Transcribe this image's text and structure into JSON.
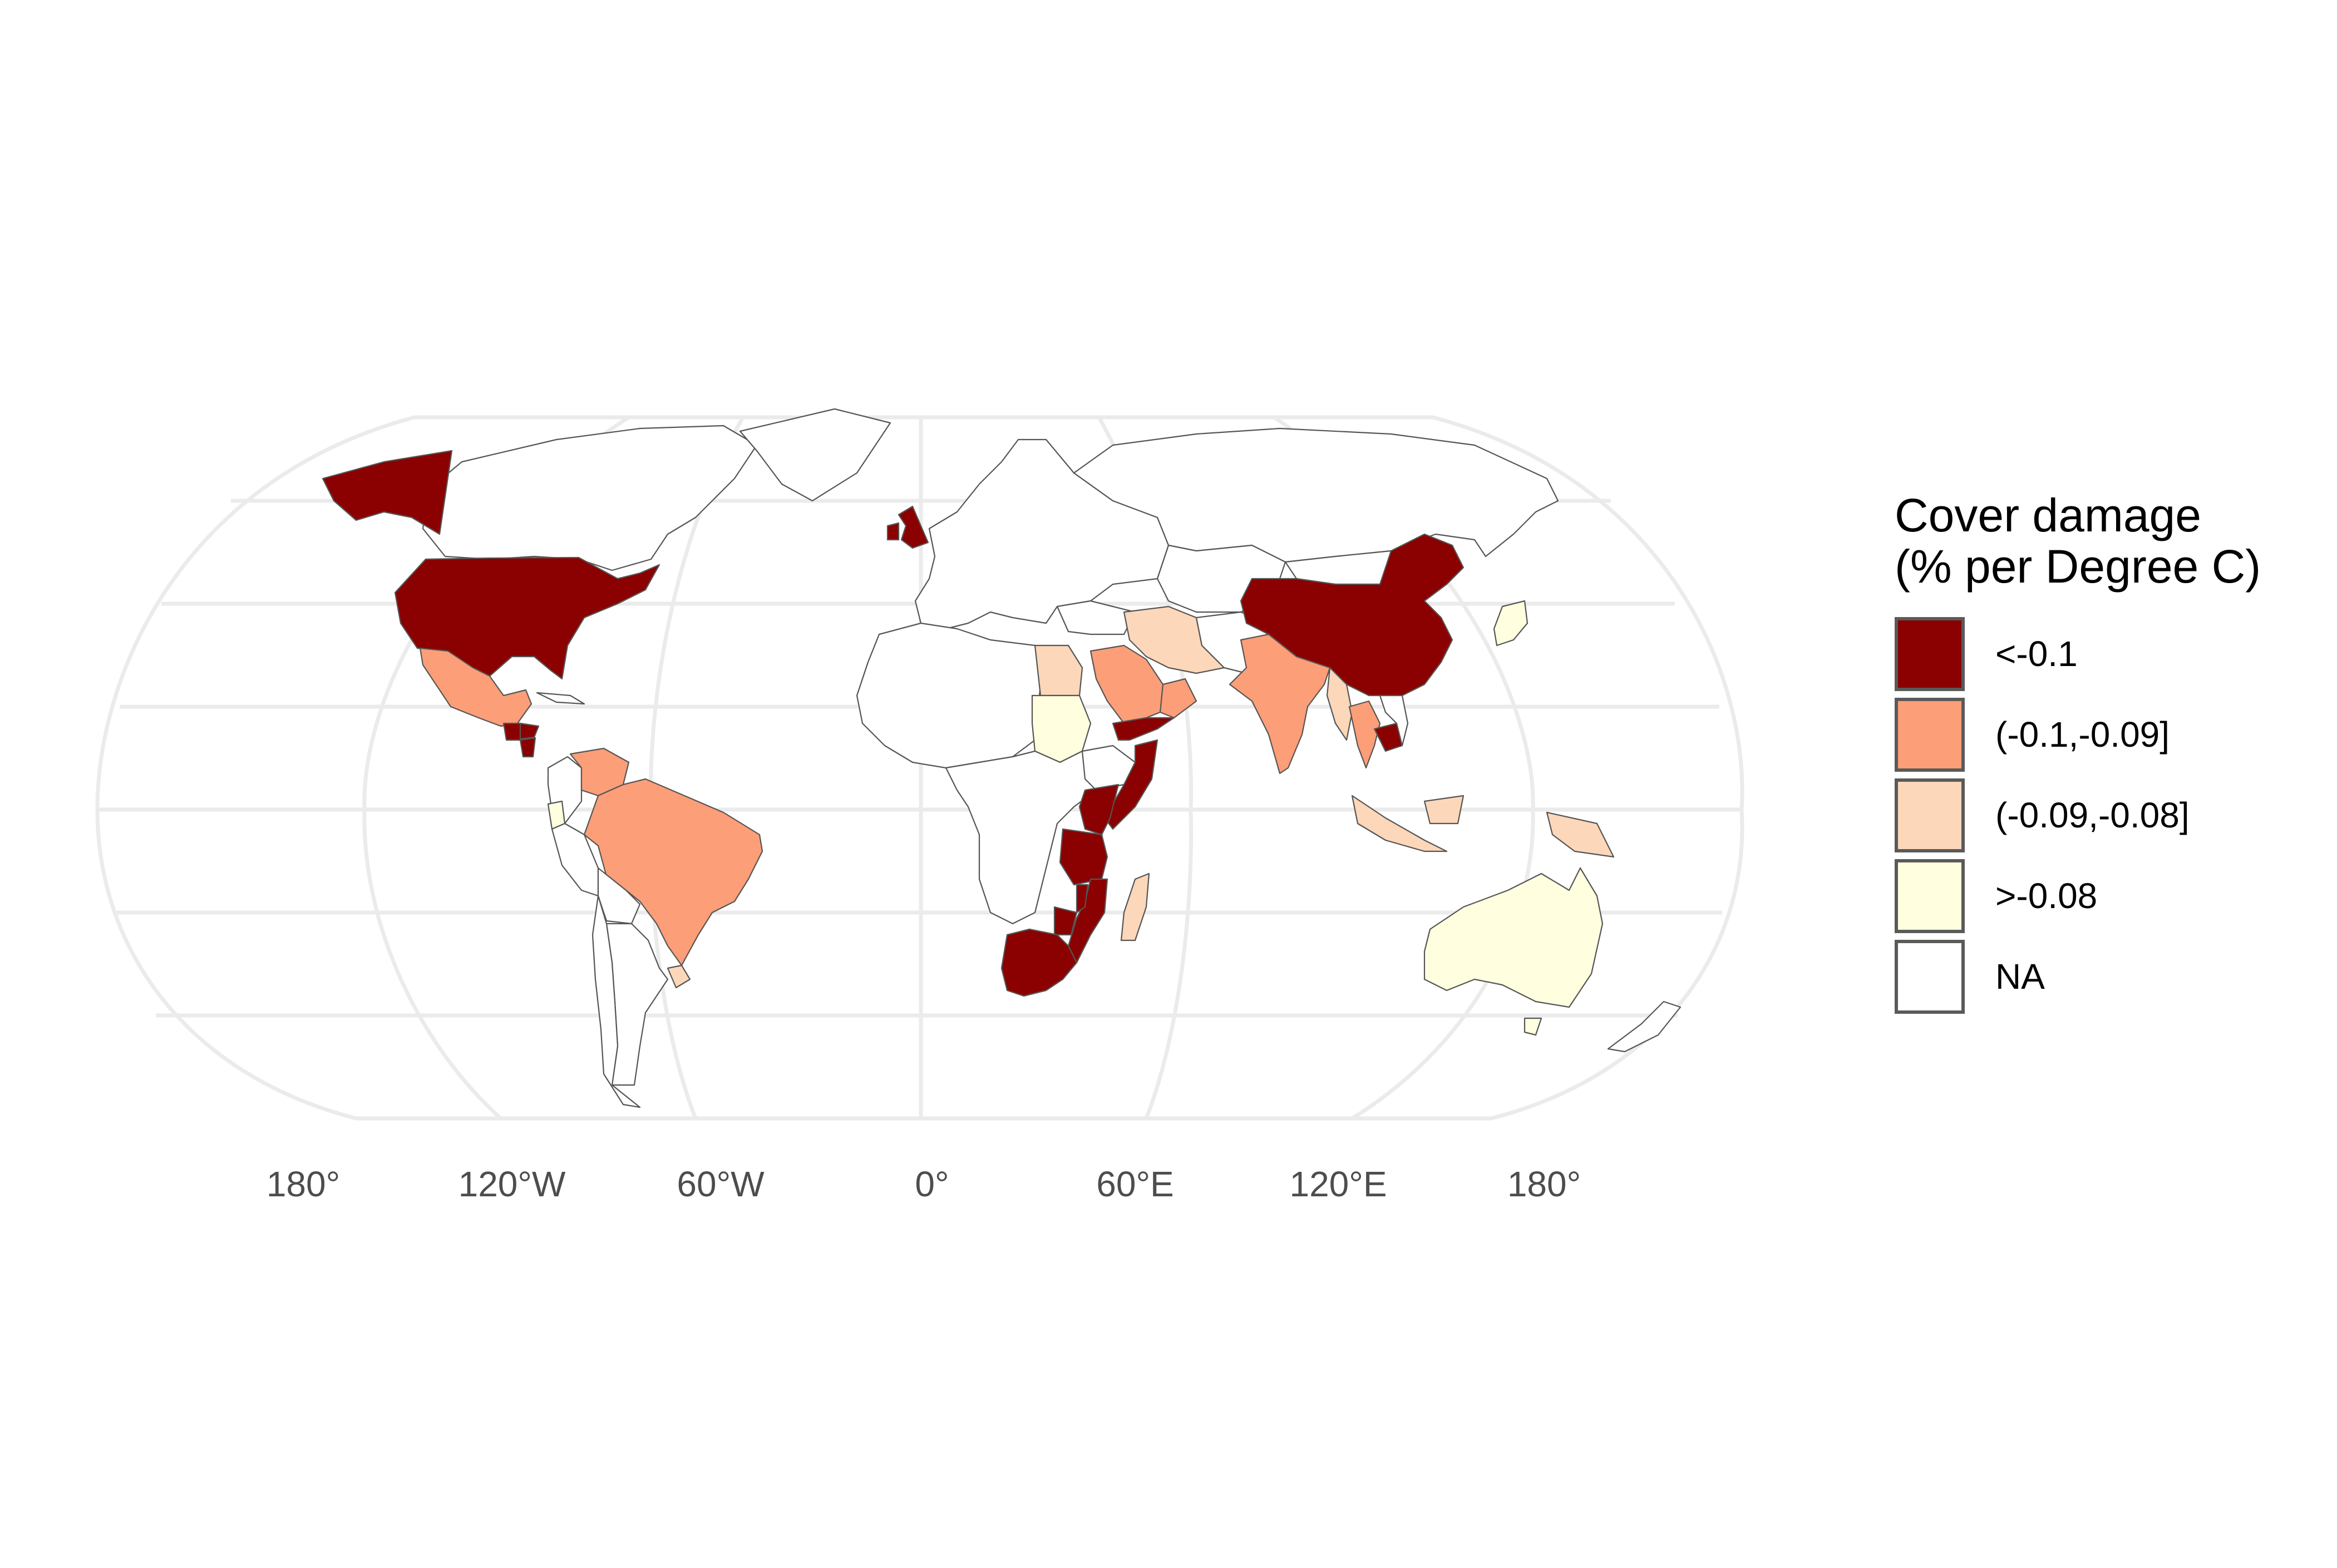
{
  "legend": {
    "title_line1": "Cover damage",
    "title_line2": "(% per Degree C)",
    "items": [
      {
        "label": "<-0.1",
        "color": "#8b0000"
      },
      {
        "label": "(-0.1,-0.09]",
        "color": "#fc9e78"
      },
      {
        "label": "(-0.09,-0.08]",
        "color": "#fdd7b9"
      },
      {
        "label": ">-0.08",
        "color": "#ffffdf"
      },
      {
        "label": "NA",
        "color": "#ffffff"
      }
    ]
  },
  "axis": {
    "longitude_labels": [
      "180°",
      "120°W",
      "60°W",
      "0°",
      "60°E",
      "120°E",
      "180°"
    ]
  },
  "countries": [
    {
      "name": "United States",
      "class": "<-0.1"
    },
    {
      "name": "Alaska",
      "class": "<-0.1"
    },
    {
      "name": "United Kingdom",
      "class": "<-0.1"
    },
    {
      "name": "China",
      "class": "<-0.1"
    },
    {
      "name": "Guatemala",
      "class": "<-0.1"
    },
    {
      "name": "Honduras",
      "class": "<-0.1"
    },
    {
      "name": "Nicaragua",
      "class": "<-0.1"
    },
    {
      "name": "Yemen",
      "class": "<-0.1"
    },
    {
      "name": "Somalia",
      "class": "<-0.1"
    },
    {
      "name": "Kenya",
      "class": "<-0.1"
    },
    {
      "name": "Tanzania",
      "class": "<-0.1"
    },
    {
      "name": "Mozambique",
      "class": "<-0.1"
    },
    {
      "name": "Malawi",
      "class": "<-0.1"
    },
    {
      "name": "Zimbabwe",
      "class": "<-0.1"
    },
    {
      "name": "South Africa",
      "class": "<-0.1"
    },
    {
      "name": "Cambodia",
      "class": "<-0.1"
    },
    {
      "name": "Mexico",
      "class": "(-0.1,-0.09]"
    },
    {
      "name": "Venezuela",
      "class": "(-0.1,-0.09]"
    },
    {
      "name": "Brazil",
      "class": "(-0.1,-0.09]"
    },
    {
      "name": "Saudi Arabia",
      "class": "(-0.1,-0.09]"
    },
    {
      "name": "Oman",
      "class": "(-0.1,-0.09]"
    },
    {
      "name": "India",
      "class": "(-0.1,-0.09]"
    },
    {
      "name": "Thailand",
      "class": "(-0.1,-0.09]"
    },
    {
      "name": "Egypt",
      "class": "(-0.09,-0.08]"
    },
    {
      "name": "Iran",
      "class": "(-0.09,-0.08]"
    },
    {
      "name": "Madagascar",
      "class": "(-0.09,-0.08]"
    },
    {
      "name": "Uruguay",
      "class": "(-0.09,-0.08]"
    },
    {
      "name": "Myanmar",
      "class": "(-0.09,-0.08]"
    },
    {
      "name": "Indonesia",
      "class": "(-0.09,-0.08]"
    },
    {
      "name": "Sudan",
      "class": ">-0.08"
    },
    {
      "name": "Ecuador",
      "class": ">-0.08"
    },
    {
      "name": "Australia",
      "class": ">-0.08"
    },
    {
      "name": "Japan",
      "class": ">-0.08"
    }
  ]
}
